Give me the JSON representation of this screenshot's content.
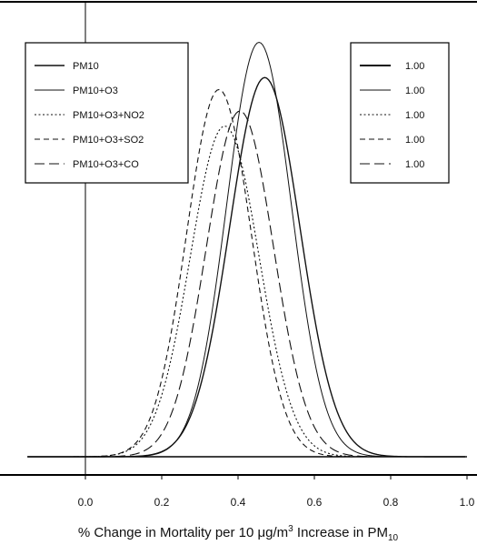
{
  "chart_data": {
    "type": "line",
    "title": "",
    "xlabel": "% Change in Mortality per 10 μg/m",
    "xlabel_sup": "3",
    "xlabel_mid": " Increase in PM",
    "xlabel_sub": "10",
    "ylabel": "",
    "xlim": [
      -0.15,
      1.02
    ],
    "ylim": [
      0,
      1
    ],
    "x_ticks": [
      0.0,
      0.2,
      0.4,
      0.6,
      0.8,
      1.0
    ],
    "x_tick_labels": [
      "0.0",
      "0.2",
      "0.4",
      "0.6",
      "0.8",
      "1.0"
    ],
    "grid": false,
    "legend_position": "top-left",
    "series": [
      {
        "name": "PM10",
        "style": "solid",
        "mean": 0.47,
        "sd": 0.092,
        "peak": 0.883
      },
      {
        "name": "PM10+O3",
        "style": "solid-thin",
        "mean": 0.455,
        "sd": 0.085,
        "peak": 0.965
      },
      {
        "name": "PM10+O3+NO2",
        "style": "dotted",
        "mean": 0.365,
        "sd": 0.09,
        "peak": 0.77
      },
      {
        "name": "PM10+O3+SO2",
        "style": "dashed",
        "mean": 0.35,
        "sd": 0.085,
        "peak": 0.855
      },
      {
        "name": "PM10+O3+CO",
        "style": "long-dash",
        "mean": 0.405,
        "sd": 0.088,
        "peak": 0.805
      }
    ],
    "secondary_legend": {
      "position": "top-right",
      "values": [
        "1.00",
        "1.00",
        "1.00",
        "1.00",
        "1.00"
      ]
    }
  }
}
